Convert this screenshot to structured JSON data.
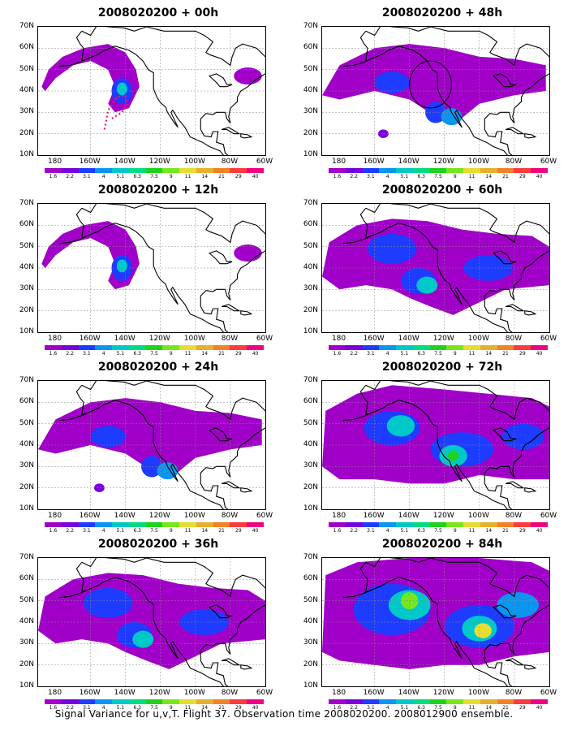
{
  "panels": [
    {
      "id": "p00",
      "title": "2008020200 + 00h",
      "level": 1
    },
    {
      "id": "p48",
      "title": "2008020200 + 48h",
      "level": 2
    },
    {
      "id": "p12",
      "title": "2008020200 + 12h",
      "level": 1
    },
    {
      "id": "p60",
      "title": "2008020200 + 60h",
      "level": 3
    },
    {
      "id": "p24",
      "title": "2008020200 + 24h",
      "level": 2
    },
    {
      "id": "p72",
      "title": "2008020200 + 72h",
      "level": 4
    },
    {
      "id": "p36",
      "title": "2008020200 + 36h",
      "level": 3
    },
    {
      "id": "p84",
      "title": "2008020200 + 84h",
      "level": 5
    }
  ],
  "axes": {
    "lat_labels": [
      "70N",
      "60N",
      "50N",
      "40N",
      "30N",
      "20N",
      "10N"
    ],
    "lon_labels": [
      "180",
      "160W",
      "140W",
      "120W",
      "100W",
      "80W",
      "60W"
    ]
  },
  "colorbar": {
    "labels": [
      "1.6",
      "2.2",
      "3.1",
      "4",
      "5.1",
      "6.3",
      "7.5",
      "9",
      "11",
      "14",
      "21",
      "29",
      "40"
    ],
    "colors": [
      "#a000c8",
      "#7800dc",
      "#1e3cff",
      "#0a96f0",
      "#00c8c8",
      "#00dc82",
      "#1ed21e",
      "#78e61e",
      "#e6dc32",
      "#e6af2d",
      "#f08228",
      "#fa3c3c",
      "#f00082"
    ]
  },
  "caption": "Signal Variance for u,v,T. Flight 37. Observation time 2008020200. 2008012900 ensemble."
}
